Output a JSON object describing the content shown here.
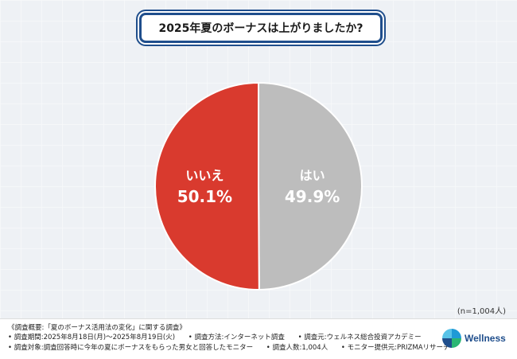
{
  "chart_data": {
    "type": "pie",
    "title": "2025年夏のボーナスは上がりましたか?",
    "slices": [
      {
        "label": "はい",
        "value": 49.9,
        "value_text": "49.9%",
        "color": "#bdbdbd"
      },
      {
        "label": "いいえ",
        "value": 50.1,
        "value_text": "50.1%",
        "color": "#d93a2e"
      }
    ],
    "sample_note": "(n=1,004人)"
  },
  "footer": {
    "row1": "《調査概要:「夏のボーナス活用法の変化」に関する調査》",
    "row2a": "• 調査期間:2025年8月18日(月)〜2025年8月19日(火)",
    "row2b": "• 調査方法:インターネット調査",
    "row2c": "• 調査元:ウェルネス総合投資アカデミー",
    "row3a": "• 調査対象:調査回答時に今年の夏にボーナスをもらった男女と回答したモニター",
    "row3b": "• 調査人数:1,004人",
    "row3c": "• モニター提供元:PRIZMAリサーチ",
    "logo_text": "Wellness"
  }
}
